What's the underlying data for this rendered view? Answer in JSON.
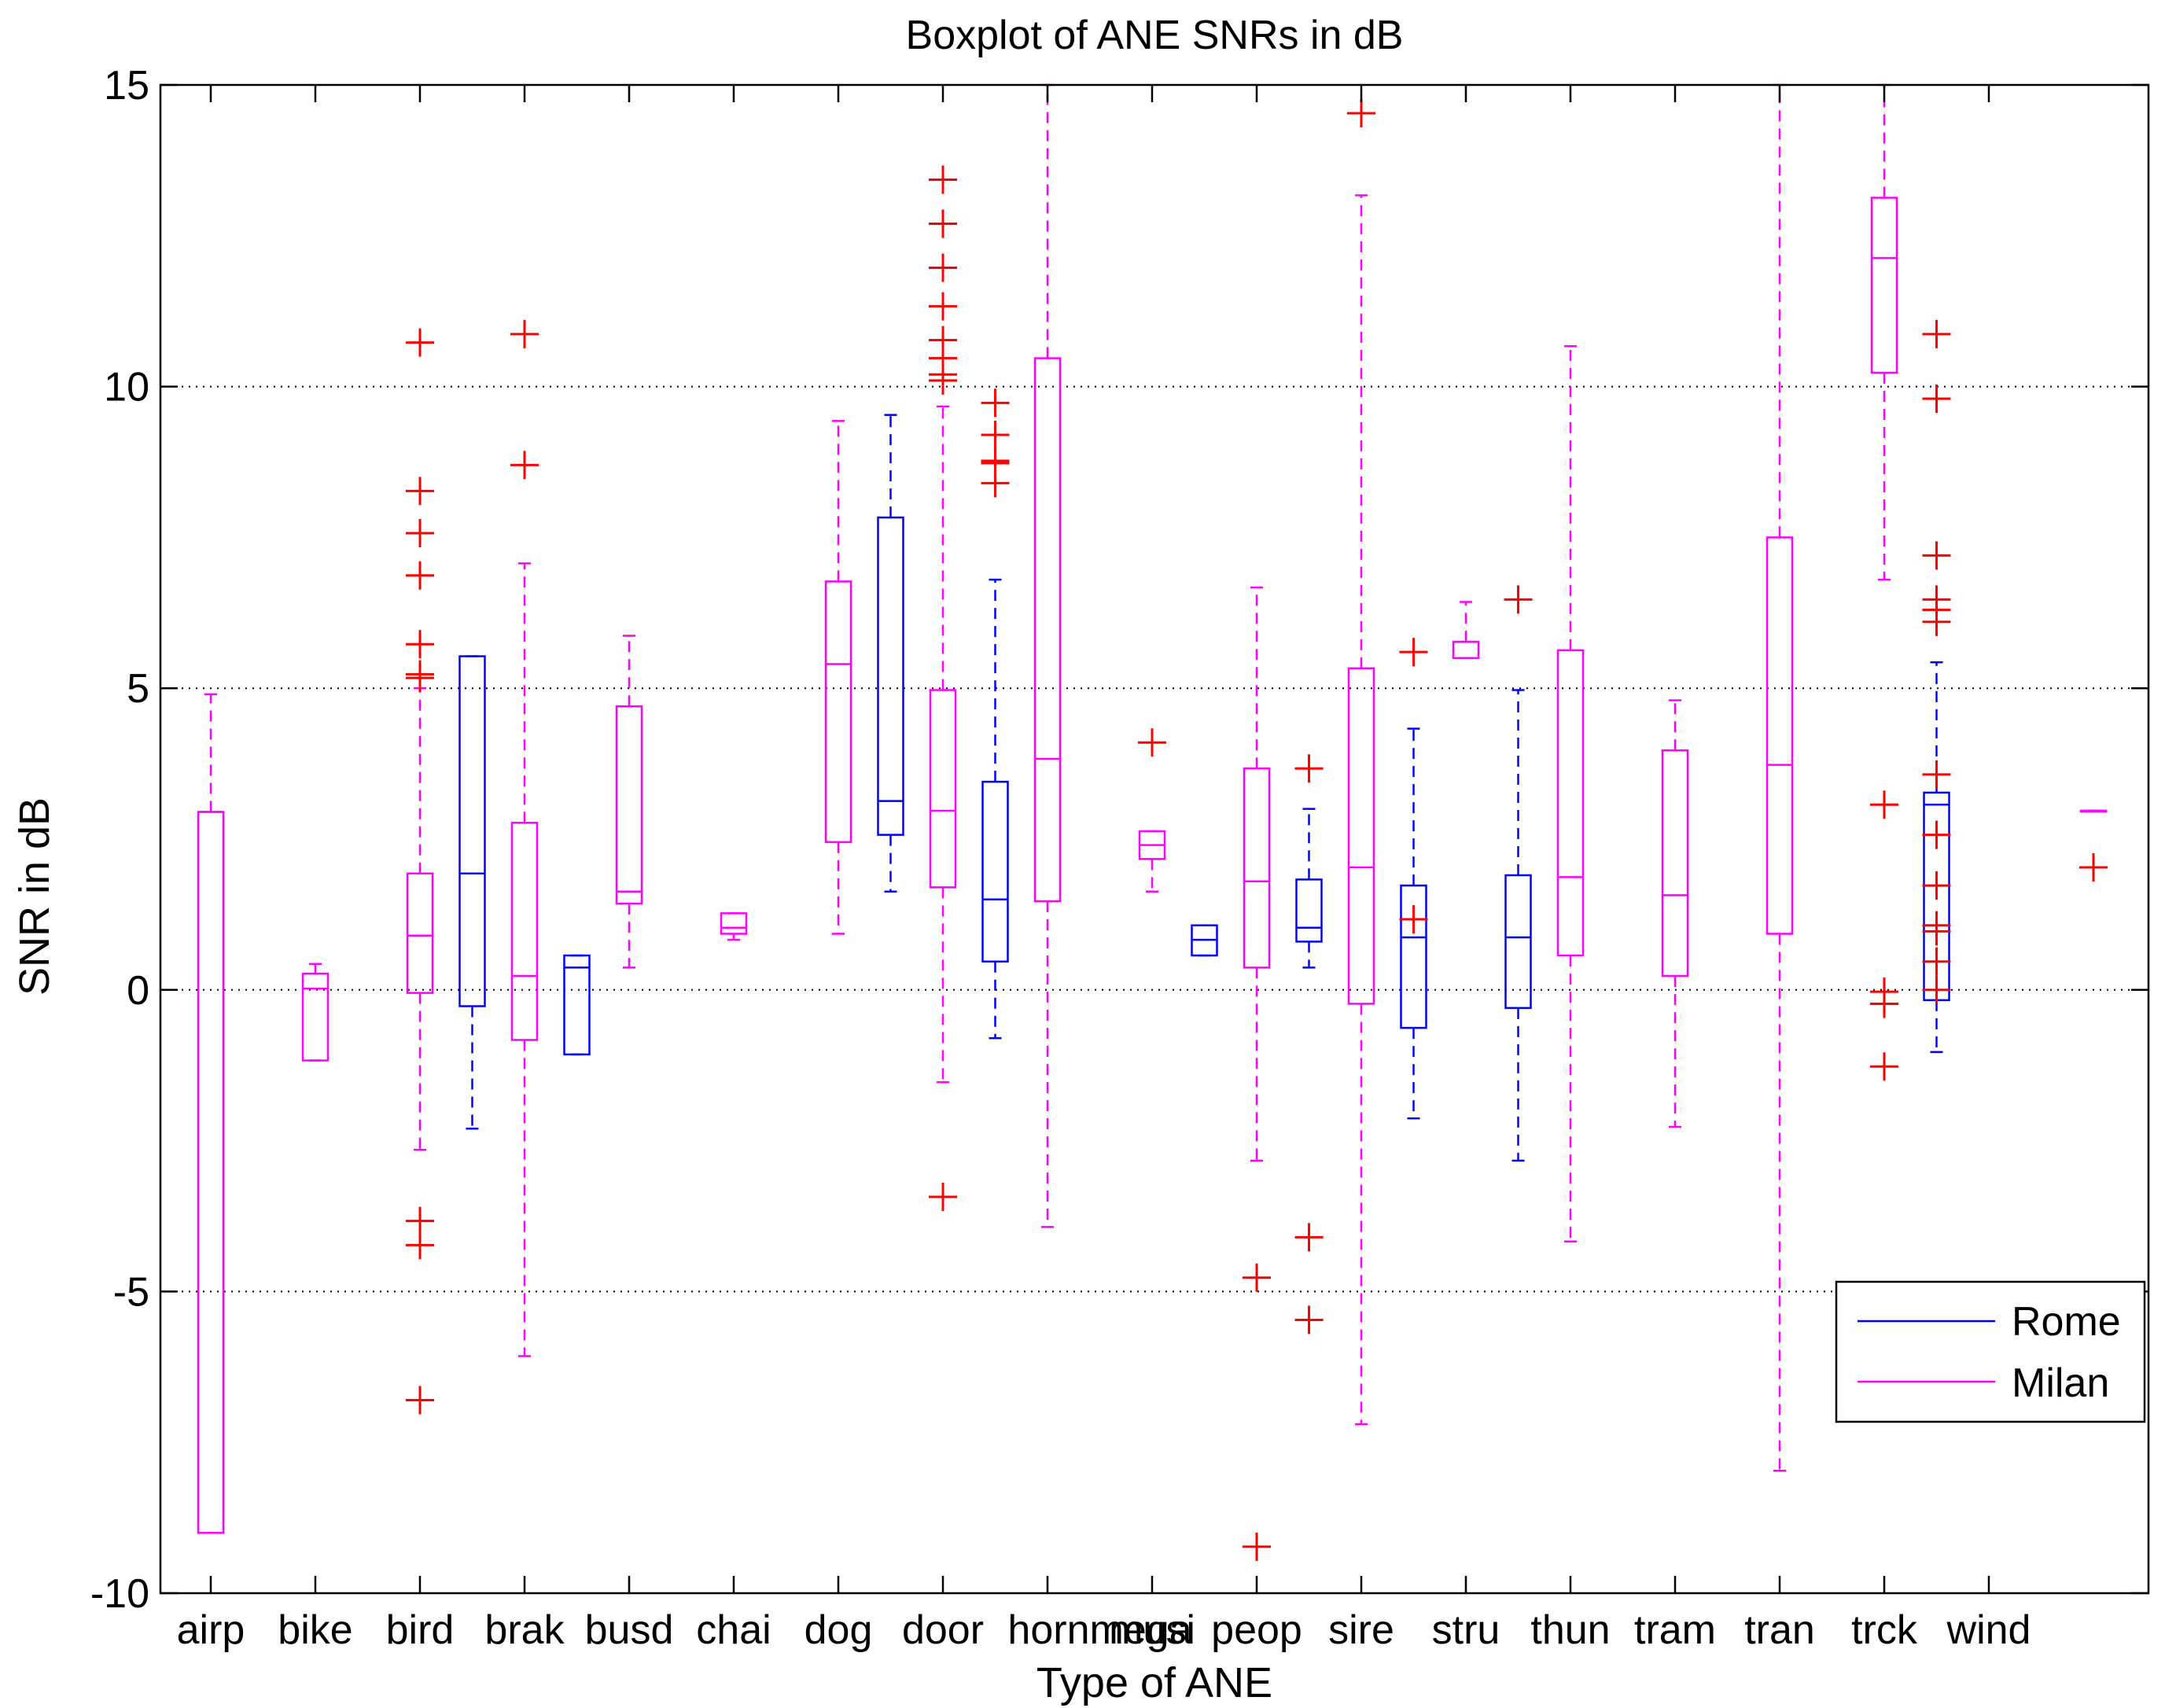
{
  "chart_data": {
    "type": "boxplot",
    "title": "Boxplot of ANE SNRs in dB",
    "xlabel": "Type of ANE",
    "ylabel": "SNR in dB",
    "ylim": [
      -10,
      15
    ],
    "yticks": [
      15,
      10,
      5,
      0,
      -5,
      -10
    ],
    "ytick_labels": [
      "15",
      "10",
      "5",
      "0",
      "-5",
      "-10"
    ],
    "grid": "horizontal-dotted",
    "categories": [
      "airp",
      "bike",
      "bird",
      "brak",
      "busd",
      "chai",
      "dog",
      "door",
      "hornmega",
      "musi",
      "peop",
      "sire",
      "stru",
      "thun",
      "tram",
      "tran",
      "trck",
      "wind"
    ],
    "legend": {
      "position": "lower-right",
      "entries": [
        {
          "name": "Rome",
          "color": "#0000ff"
        },
        {
          "name": "Milan",
          "color": "#ff00ff"
        }
      ]
    },
    "colors": {
      "Rome": "#0000ff",
      "Milan": "#ff00ff",
      "outlier": "#ff0000",
      "grid": "#000000"
    },
    "boxes": [
      {
        "series": "Milan",
        "slot": 1,
        "wlo": -9,
        "q1": -9,
        "med": 2.95,
        "q3": 2.95,
        "whi": 4.9,
        "outliers": []
      },
      {
        "series": "Milan",
        "slot": 2,
        "wlo": -1.17,
        "q1": -1.17,
        "med": 0.02,
        "q3": 0.27,
        "whi": 0.43,
        "outliers": []
      },
      {
        "series": "Milan",
        "slot": 3,
        "wlo": -2.65,
        "q1": -0.05,
        "med": 0.9,
        "q3": 1.93,
        "whi": 5.0,
        "outliers": [
          10.73,
          8.27,
          7.57,
          6.87,
          5.73,
          5.23,
          5.17,
          -3.83,
          -4.23,
          -6.8
        ]
      },
      {
        "series": "Rome",
        "slot": 3.5,
        "wlo": -2.3,
        "q1": -0.27,
        "med": 1.93,
        "q3": 5.53,
        "whi": 5.53,
        "outliers": []
      },
      {
        "series": "Milan",
        "slot": 4,
        "wlo": -6.07,
        "q1": -0.83,
        "med": 0.23,
        "q3": 2.77,
        "whi": 7.07,
        "outliers": [
          10.87,
          8.7
        ]
      },
      {
        "series": "Rome",
        "slot": 4.5,
        "wlo": -1.07,
        "q1": -1.07,
        "med": 0.37,
        "q3": 0.57,
        "whi": 0.57,
        "outliers": []
      },
      {
        "series": "Milan",
        "slot": 5,
        "wlo": 0.37,
        "q1": 1.43,
        "med": 1.63,
        "q3": 4.7,
        "whi": 5.87,
        "outliers": []
      },
      {
        "series": "Milan",
        "slot": 6,
        "wlo": 0.83,
        "q1": 0.93,
        "med": 1.03,
        "q3": 1.27,
        "whi": 1.27,
        "outliers": []
      },
      {
        "series": "Milan",
        "slot": 7,
        "wlo": 0.93,
        "q1": 2.45,
        "med": 5.4,
        "q3": 6.77,
        "whi": 9.43,
        "outliers": []
      },
      {
        "series": "Rome",
        "slot": 7.5,
        "wlo": 1.63,
        "q1": 2.57,
        "med": 3.13,
        "q3": 7.83,
        "whi": 9.53,
        "outliers": []
      },
      {
        "series": "Milan",
        "slot": 8,
        "wlo": -1.53,
        "q1": 1.7,
        "med": 2.97,
        "q3": 4.97,
        "whi": 9.67,
        "outliers": [
          13.43,
          12.7,
          11.97,
          11.33,
          10.77,
          10.47,
          10.2,
          10.1,
          -3.43
        ]
      },
      {
        "series": "Rome",
        "slot": 8.5,
        "wlo": -0.8,
        "q1": 0.47,
        "med": 1.5,
        "q3": 3.45,
        "whi": 6.8,
        "outliers": [
          9.73,
          9.2,
          8.77,
          8.73,
          8.4
        ]
      },
      {
        "series": "Milan",
        "slot": 9,
        "wlo": -3.93,
        "q1": 1.47,
        "med": 3.83,
        "q3": 10.47,
        "whi": 15,
        "outliers": []
      },
      {
        "series": "Milan",
        "slot": 10,
        "wlo": 1.63,
        "q1": 2.17,
        "med": 2.4,
        "q3": 2.63,
        "whi": 2.63,
        "outliers": [
          4.1
        ]
      },
      {
        "series": "Rome",
        "slot": 10.5,
        "wlo": 0.57,
        "q1": 0.57,
        "med": 0.83,
        "q3": 1.07,
        "whi": 1.07,
        "outliers": []
      },
      {
        "series": "Milan",
        "slot": 11,
        "wlo": -2.83,
        "q1": 0.37,
        "med": 1.8,
        "q3": 3.67,
        "whi": 6.67,
        "outliers": [
          -4.77,
          -9.23
        ]
      },
      {
        "series": "Rome",
        "slot": 11.5,
        "wlo": 0.37,
        "q1": 0.8,
        "med": 1.03,
        "q3": 1.83,
        "whi": 3.0,
        "outliers": [
          3.67,
          -4.1,
          -5.47
        ]
      },
      {
        "series": "Milan",
        "slot": 12,
        "wlo": -7.2,
        "q1": -0.23,
        "med": 2.03,
        "q3": 5.33,
        "whi": 13.17,
        "outliers": [
          14.53
        ]
      },
      {
        "series": "Milan",
        "slot": 13,
        "wlo": 5.5,
        "q1": 5.5,
        "med": 5.77,
        "q3": 5.77,
        "whi": 6.43,
        "outliers": []
      },
      {
        "series": "Rome",
        "slot": 12.5,
        "wlo": -2.13,
        "q1": -0.63,
        "med": 0.87,
        "q3": 1.73,
        "whi": 4.33,
        "outliers": [
          5.6,
          1.17
        ]
      },
      {
        "series": "Milan",
        "slot": 14,
        "wlo": -4.17,
        "q1": 0.57,
        "med": 1.87,
        "q3": 5.63,
        "whi": 10.67,
        "outliers": []
      },
      {
        "series": "Rome",
        "slot": 13.5,
        "wlo": -2.83,
        "q1": -0.3,
        "med": 0.87,
        "q3": 1.9,
        "whi": 4.97,
        "outliers": [
          6.47
        ]
      },
      {
        "series": "Milan",
        "slot": 15,
        "wlo": -2.27,
        "q1": 0.23,
        "med": 1.57,
        "q3": 3.97,
        "whi": 4.8,
        "outliers": []
      },
      {
        "series": "Milan",
        "slot": 16,
        "wlo": -7.97,
        "q1": 0.93,
        "med": 3.73,
        "q3": 7.5,
        "whi": 15,
        "outliers": []
      },
      {
        "series": "Milan",
        "slot": 17,
        "wlo": 6.8,
        "q1": 10.23,
        "med": 12.13,
        "q3": 13.13,
        "whi": 15,
        "outliers": [
          3.07,
          -0.03,
          -0.23,
          -1.27
        ]
      },
      {
        "series": "Rome",
        "slot": 17.5,
        "wlo": -1.03,
        "q1": -0.17,
        "med": 3.07,
        "q3": 3.27,
        "whi": 5.43,
        "outliers": [
          10.87,
          9.8,
          7.2,
          6.47,
          6.3,
          6.1,
          3.57,
          2.57,
          1.73,
          1.07,
          0.97,
          0.47,
          0.0
        ]
      },
      {
        "series": "Milan",
        "slot": 19,
        "wlo": 2.97,
        "q1": 2.97,
        "med": 2.97,
        "q3": 2.97,
        "whi": 2.97,
        "outliers": [
          2.03
        ]
      }
    ]
  }
}
